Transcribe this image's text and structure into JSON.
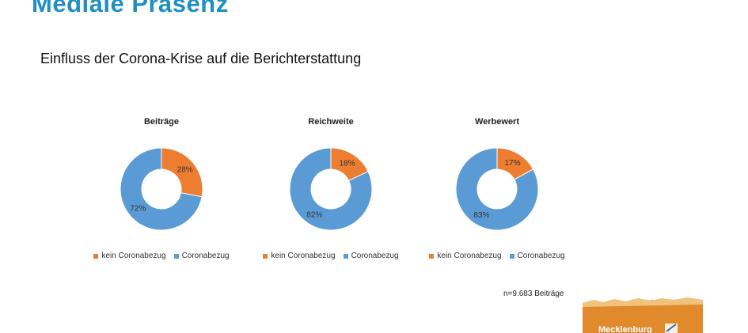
{
  "header": {
    "title": "Mediale Präsenz",
    "subtitle": "Einfluss der Corona-Krise auf die Berichterstattung"
  },
  "colors": {
    "orange": "#ED7D31",
    "blue": "#5B9BD5",
    "title_blue": "#1f8fc1"
  },
  "chart_data": [
    {
      "type": "pie",
      "title": "Beiträge",
      "categories": [
        "kein Coronabezug",
        "Coronabezug"
      ],
      "values": [
        28,
        72
      ],
      "labels": [
        "28%",
        "72%"
      ],
      "legend": "bottom"
    },
    {
      "type": "pie",
      "title": "Reichweite",
      "categories": [
        "kein Coronabezug",
        "Coronabezug"
      ],
      "values": [
        18,
        82
      ],
      "labels": [
        "18%",
        "82%"
      ],
      "legend": "bottom"
    },
    {
      "type": "pie",
      "title": "Werbewert",
      "categories": [
        "kein Coronabezug",
        "Coronabezug"
      ],
      "values": [
        17,
        83
      ],
      "labels": [
        "17%",
        "83%"
      ],
      "legend": "bottom"
    }
  ],
  "footer": {
    "sample_note": "n=9.683 Beiträge",
    "logo_text": "Mecklenburg"
  }
}
